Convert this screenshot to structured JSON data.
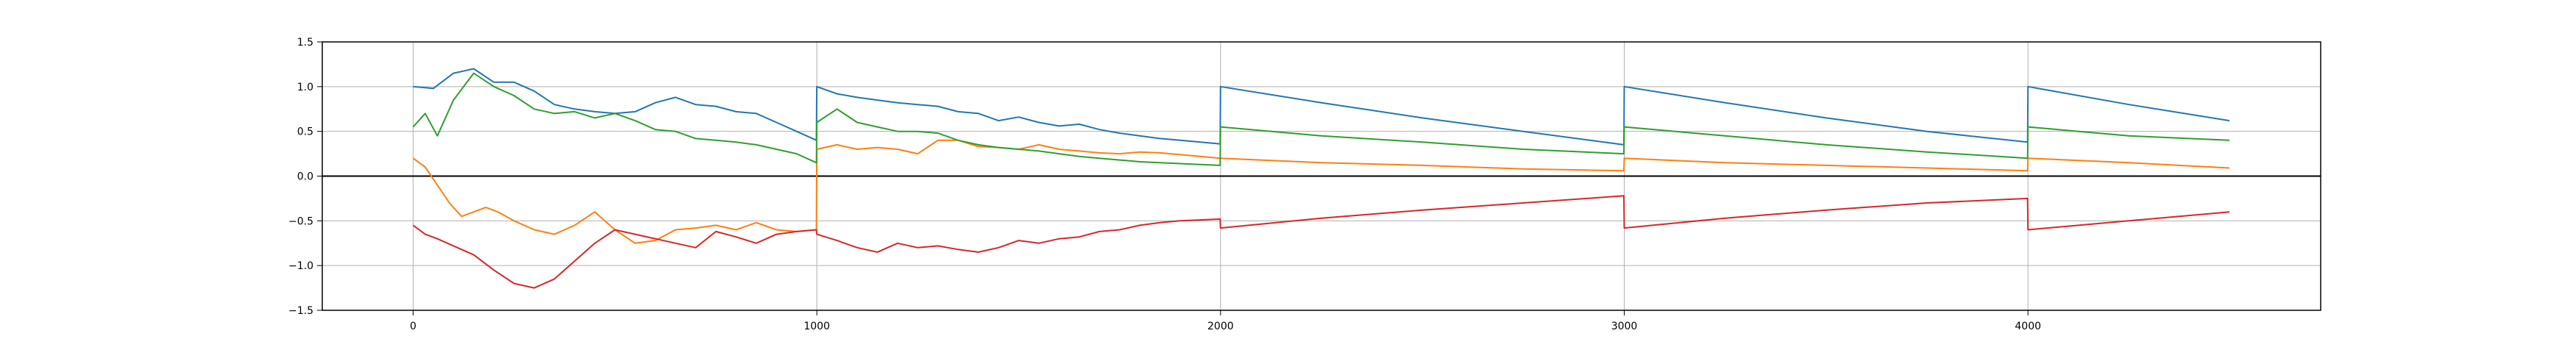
{
  "chart_data": {
    "type": "line",
    "title": "",
    "xlabel": "",
    "ylabel": "",
    "xlim": [
      -225,
      4725
    ],
    "ylim": [
      -1.5,
      1.5
    ],
    "x_ticks": [
      0,
      1000,
      2000,
      3000,
      4000
    ],
    "x_tick_labels": [
      "0",
      "1000",
      "2000",
      "3000",
      "4000"
    ],
    "y_ticks": [
      -1.5,
      -1.0,
      -0.5,
      0.0,
      0.5,
      1.0,
      1.5
    ],
    "y_tick_labels": [
      "−1.5",
      "−1.0",
      "−0.5",
      "0.0",
      "0.5",
      "1.0",
      "1.5"
    ],
    "grid": true,
    "legend": false,
    "reference_line": {
      "y": 0.0,
      "color": "#000000"
    },
    "series": [
      {
        "color": "#1f77b4",
        "x": [
          0,
          50,
          100,
          150,
          200,
          250,
          300,
          350,
          400,
          450,
          500,
          550,
          600,
          650,
          700,
          750,
          800,
          850,
          900,
          950,
          999,
          1000,
          1050,
          1100,
          1150,
          1200,
          1250,
          1300,
          1350,
          1400,
          1450,
          1500,
          1550,
          1600,
          1650,
          1700,
          1750,
          1800,
          1850,
          1900,
          1950,
          1999,
          2000,
          2250,
          2500,
          2750,
          2999,
          3000,
          3250,
          3500,
          3750,
          3999,
          4000,
          4250,
          4499
        ],
        "y": [
          1.0,
          0.98,
          1.15,
          1.2,
          1.05,
          1.05,
          0.95,
          0.8,
          0.75,
          0.72,
          0.7,
          0.72,
          0.82,
          0.88,
          0.8,
          0.78,
          0.72,
          0.7,
          0.6,
          0.5,
          0.4,
          1.0,
          0.92,
          0.88,
          0.85,
          0.82,
          0.8,
          0.78,
          0.72,
          0.7,
          0.62,
          0.66,
          0.6,
          0.56,
          0.58,
          0.52,
          0.48,
          0.45,
          0.42,
          0.4,
          0.38,
          0.36,
          1.0,
          0.82,
          0.65,
          0.5,
          0.35,
          1.0,
          0.82,
          0.65,
          0.5,
          0.38,
          1.0,
          0.8,
          0.62
        ]
      },
      {
        "color": "#ff7f0e",
        "x": [
          0,
          30,
          60,
          90,
          120,
          150,
          180,
          210,
          250,
          300,
          350,
          400,
          450,
          500,
          550,
          600,
          650,
          700,
          750,
          800,
          850,
          900,
          950,
          999,
          1000,
          1050,
          1100,
          1150,
          1200,
          1250,
          1300,
          1350,
          1400,
          1450,
          1500,
          1550,
          1600,
          1650,
          1700,
          1750,
          1800,
          1850,
          1900,
          1950,
          1999,
          2000,
          2250,
          2500,
          2750,
          2999,
          3000,
          3250,
          3500,
          3750,
          3999,
          4000,
          4250,
          4499
        ],
        "y": [
          0.2,
          0.1,
          -0.1,
          -0.3,
          -0.45,
          -0.4,
          -0.35,
          -0.4,
          -0.5,
          -0.6,
          -0.65,
          -0.55,
          -0.4,
          -0.6,
          -0.75,
          -0.72,
          -0.6,
          -0.58,
          -0.55,
          -0.6,
          -0.52,
          -0.6,
          -0.62,
          -0.6,
          0.3,
          0.35,
          0.3,
          0.32,
          0.3,
          0.25,
          0.4,
          0.4,
          0.33,
          0.32,
          0.3,
          0.35,
          0.3,
          0.28,
          0.26,
          0.25,
          0.27,
          0.26,
          0.24,
          0.22,
          0.2,
          0.2,
          0.15,
          0.12,
          0.08,
          0.06,
          0.2,
          0.15,
          0.12,
          0.09,
          0.06,
          0.2,
          0.15,
          0.09
        ]
      },
      {
        "color": "#2ca02c",
        "x": [
          0,
          30,
          60,
          100,
          150,
          200,
          250,
          300,
          350,
          400,
          450,
          500,
          550,
          600,
          650,
          700,
          750,
          800,
          850,
          900,
          950,
          999,
          1000,
          1050,
          1100,
          1150,
          1200,
          1250,
          1300,
          1350,
          1400,
          1450,
          1500,
          1550,
          1600,
          1650,
          1700,
          1750,
          1800,
          1850,
          1900,
          1950,
          1999,
          2000,
          2250,
          2500,
          2750,
          2999,
          3000,
          3250,
          3500,
          3750,
          3999,
          4000,
          4250,
          4499
        ],
        "y": [
          0.55,
          0.7,
          0.45,
          0.85,
          1.15,
          1.0,
          0.9,
          0.75,
          0.7,
          0.72,
          0.65,
          0.7,
          0.62,
          0.52,
          0.5,
          0.42,
          0.4,
          0.38,
          0.35,
          0.3,
          0.25,
          0.15,
          0.6,
          0.75,
          0.6,
          0.55,
          0.5,
          0.5,
          0.48,
          0.4,
          0.35,
          0.32,
          0.3,
          0.28,
          0.25,
          0.22,
          0.2,
          0.18,
          0.16,
          0.15,
          0.14,
          0.13,
          0.12,
          0.55,
          0.45,
          0.38,
          0.3,
          0.25,
          0.55,
          0.45,
          0.35,
          0.27,
          0.2,
          0.55,
          0.45,
          0.4
        ]
      },
      {
        "color": "#d62728",
        "x": [
          0,
          30,
          60,
          100,
          150,
          200,
          250,
          300,
          350,
          400,
          450,
          500,
          550,
          600,
          650,
          700,
          750,
          800,
          850,
          900,
          950,
          999,
          1000,
          1050,
          1100,
          1150,
          1200,
          1250,
          1300,
          1350,
          1400,
          1450,
          1500,
          1550,
          1600,
          1650,
          1700,
          1750,
          1800,
          1850,
          1900,
          1950,
          1999,
          2000,
          2250,
          2500,
          2750,
          2999,
          3000,
          3250,
          3500,
          3750,
          3999,
          4000,
          4250,
          4499
        ],
        "y": [
          -0.55,
          -0.65,
          -0.7,
          -0.78,
          -0.88,
          -1.05,
          -1.2,
          -1.25,
          -1.15,
          -0.95,
          -0.75,
          -0.6,
          -0.65,
          -0.7,
          -0.75,
          -0.8,
          -0.62,
          -0.68,
          -0.75,
          -0.65,
          -0.62,
          -0.6,
          -0.65,
          -0.72,
          -0.8,
          -0.85,
          -0.75,
          -0.8,
          -0.78,
          -0.82,
          -0.85,
          -0.8,
          -0.72,
          -0.75,
          -0.7,
          -0.68,
          -0.62,
          -0.6,
          -0.55,
          -0.52,
          -0.5,
          -0.49,
          -0.48,
          -0.58,
          -0.47,
          -0.38,
          -0.3,
          -0.22,
          -0.58,
          -0.47,
          -0.38,
          -0.3,
          -0.25,
          -0.6,
          -0.5,
          -0.4
        ]
      }
    ]
  }
}
